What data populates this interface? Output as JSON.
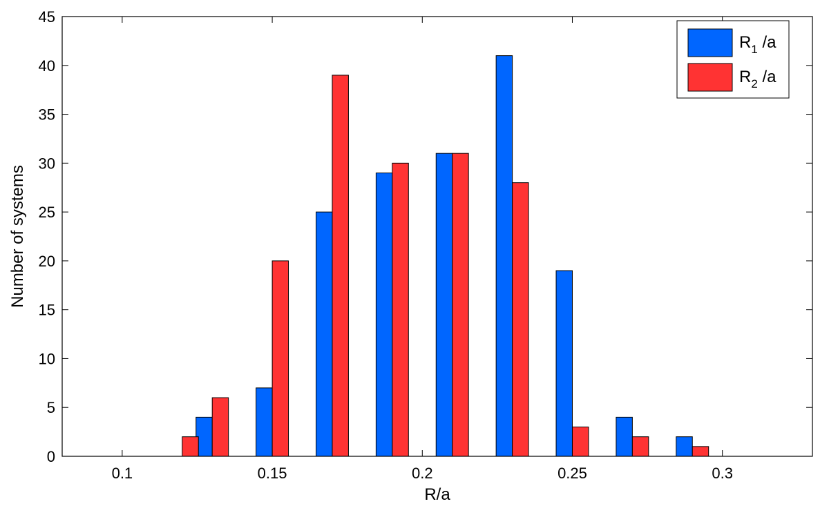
{
  "chart_data": {
    "type": "bar",
    "categories": [
      0.12,
      0.13,
      0.15,
      0.17,
      0.19,
      0.21,
      0.23,
      0.25,
      0.27,
      0.29
    ],
    "series": [
      {
        "name": "R1 /a",
        "label_main": "R",
        "label_sub": "1",
        "label_rest": " /a",
        "color": "#0066ff",
        "values": [
          0,
          4,
          7,
          25,
          29,
          31,
          41,
          19,
          4,
          2
        ]
      },
      {
        "name": "R2 /a",
        "label_main": "R",
        "label_sub": "2",
        "label_rest": " /a",
        "color": "#ff3333",
        "values": [
          2,
          6,
          20,
          39,
          30,
          31,
          28,
          3,
          2,
          1
        ]
      }
    ],
    "xlabel": "R/a",
    "ylabel": "Number of systems",
    "xlim": [
      0.08,
      0.33
    ],
    "ylim": [
      0,
      45
    ],
    "xticks": [
      0.1,
      0.15,
      0.2,
      0.25,
      0.3
    ],
    "xtick_labels": [
      "0.1",
      "0.15",
      "0.2",
      "0.25",
      "0.3"
    ],
    "yticks": [
      0,
      5,
      10,
      15,
      20,
      25,
      30,
      35,
      40,
      45
    ],
    "ytick_labels": [
      "0",
      "5",
      "10",
      "15",
      "20",
      "25",
      "30",
      "35",
      "40",
      "45"
    ],
    "grid": false,
    "legend_position": "top-right"
  }
}
